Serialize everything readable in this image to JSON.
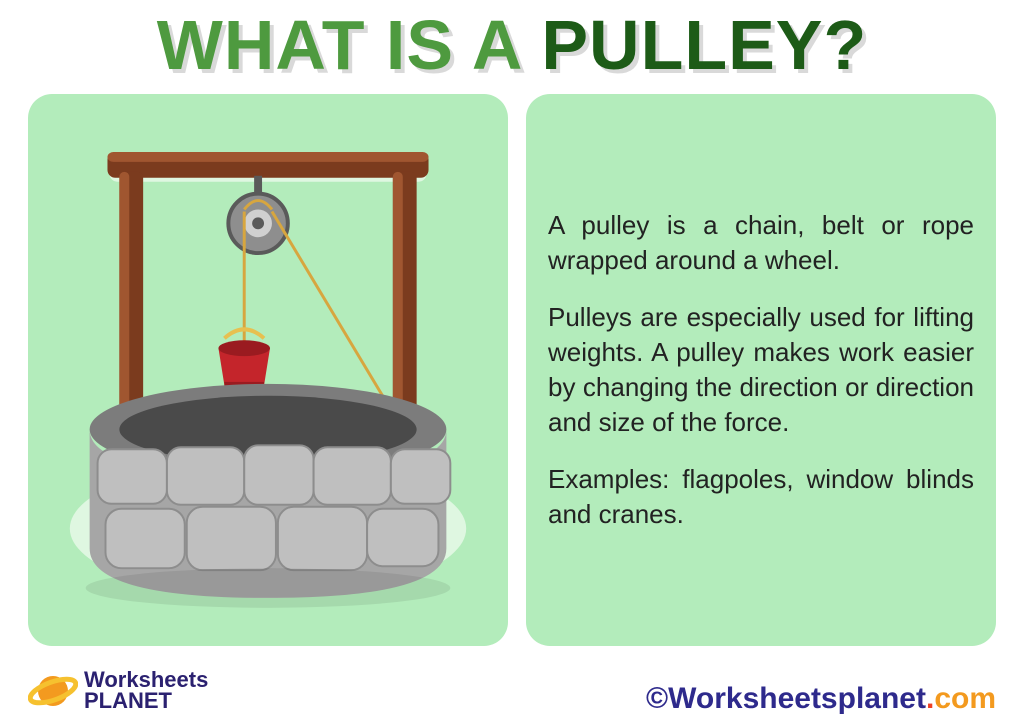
{
  "colors": {
    "panel_bg": "#b3ecbb",
    "title_light": "#4e9a3f",
    "title_dark": "#1d5b17",
    "text_dark": "#222222",
    "logo_purple": "#2b2170",
    "logo_orange": "#f39a1f",
    "logo_yellow": "#f6c12f",
    "copyright_c": "#2e2a8c",
    "copyright_main": "#2e2a8c",
    "copyright_dot": "#ee4023",
    "copyright_com": "#f39a1f"
  },
  "title": {
    "part1": "WHAT IS A ",
    "part2": "PULLEY?",
    "fontsize": 70
  },
  "body": {
    "p1": "A pulley is a chain, belt or rope wrapped around a wheel.",
    "p2": "Pulleys are especially used for lifting weights. A pulley makes work easier by changing the direction or direction and size of the force.",
    "p3": "Examples: flagpoles, window blinds and cranes.",
    "fontsize": 26
  },
  "illustration": {
    "type": "infographic",
    "subject": "water-well-with-pulley",
    "frame_color": "#7b3b1e",
    "frame_highlight": "#a05630",
    "pulley_body": "#8e8e8e",
    "pulley_light": "#d0d0d0",
    "pulley_dark": "#5a5a5a",
    "rope_color": "#d7a63f",
    "bucket_color": "#c4252b",
    "bucket_dark": "#9a1b20",
    "bucket_handle": "#e7c050",
    "well_stone_light": "#bfbfbf",
    "well_stone_mid": "#a6a6a6",
    "well_stone_dark": "#8d8d8d",
    "well_top": "#7c7c7c",
    "background_color": "#b3ecbb",
    "outline_glow": "#dff7e1"
  },
  "footer": {
    "logo_line1": "Worksheets",
    "logo_line2": "PLANET",
    "copyright_c": "©",
    "copyright_text": "Worksheetsplanet",
    "copyright_dot": ".",
    "copyright_com": "com"
  }
}
